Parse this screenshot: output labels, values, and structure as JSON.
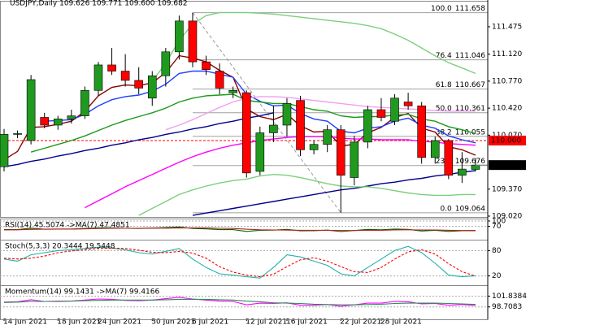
{
  "chart_data": [
    {
      "type": "candlestick",
      "title": "USDJPY,Daily  109.626 109.771 109.600 109.682",
      "categories": [
        "14 Jun 2021",
        null,
        null,
        null,
        "18 Jun 2021",
        null,
        null,
        "24 Jun 2021",
        null,
        null,
        null,
        "30 Jun 2021",
        null,
        null,
        "6 Jul 2021",
        null,
        null,
        null,
        "12 Jul 2021",
        null,
        null,
        "16 Jul 2021",
        null,
        null,
        null,
        "22 Jul 2021",
        null,
        null,
        "28 Jul 2021",
        null,
        null,
        null,
        null,
        null,
        null,
        null
      ],
      "open": [
        109.66,
        110.08,
        110.0,
        110.3,
        110.2,
        110.28,
        110.32,
        110.65,
        110.98,
        110.9,
        110.78,
        110.55,
        110.84,
        111.15,
        111.55,
        111.02,
        110.9,
        110.62,
        110.62,
        109.6,
        110.1,
        110.2,
        110.52,
        109.88,
        109.95,
        110.14,
        109.52,
        109.98,
        110.4,
        110.25,
        110.5,
        110.45,
        109.78,
        110.0,
        109.55,
        109.626
      ],
      "high": [
        110.15,
        110.13,
        110.85,
        110.36,
        110.32,
        110.4,
        110.7,
        111.02,
        111.2,
        111.12,
        110.95,
        110.9,
        111.2,
        111.62,
        111.658,
        111.1,
        111.0,
        110.7,
        110.65,
        110.18,
        110.45,
        110.55,
        110.58,
        110.0,
        110.2,
        110.2,
        110.06,
        110.45,
        110.55,
        110.6,
        110.62,
        110.5,
        110.05,
        110.02,
        109.85,
        109.771
      ],
      "low": [
        109.6,
        110.03,
        109.95,
        110.16,
        110.14,
        110.22,
        110.28,
        110.58,
        110.85,
        110.7,
        110.6,
        110.45,
        110.7,
        111.05,
        110.95,
        110.85,
        110.6,
        110.55,
        109.52,
        109.55,
        109.98,
        110.05,
        109.8,
        109.82,
        109.85,
        109.064,
        109.42,
        109.9,
        110.25,
        110.2,
        110.4,
        109.7,
        109.7,
        109.5,
        109.45,
        109.6
      ],
      "close": [
        110.08,
        110.09,
        110.79,
        110.2,
        110.28,
        110.32,
        110.65,
        110.98,
        110.9,
        110.78,
        110.68,
        110.84,
        111.15,
        111.55,
        111.02,
        110.92,
        110.68,
        110.65,
        109.58,
        110.1,
        110.2,
        110.48,
        109.88,
        109.95,
        110.14,
        109.55,
        109.98,
        110.4,
        110.3,
        110.55,
        110.45,
        109.78,
        110.0,
        109.55,
        109.63,
        109.682
      ],
      "up_color": "#1f9a1f",
      "down_color": "#ff0000",
      "series": [
        {
          "color": "#8b0000",
          "values": [
            109.75,
            109.86,
            110.17,
            110.18,
            110.21,
            110.25,
            110.38,
            110.58,
            110.69,
            110.72,
            110.71,
            110.75,
            110.88,
            111.1,
            111.07,
            111.02,
            110.91,
            110.82,
            110.41,
            110.31,
            110.27,
            110.34,
            110.19,
            110.11,
            110.12,
            109.93,
            109.95,
            110.1,
            110.17,
            110.3,
            110.35,
            110.16,
            110.11,
            109.92,
            109.88,
            109.81
          ]
        },
        {
          "color": "#1f3fff",
          "values": [
            null,
            null,
            null,
            110.25,
            110.26,
            110.27,
            110.34,
            110.45,
            110.53,
            110.57,
            110.59,
            110.64,
            110.73,
            110.87,
            110.9,
            110.9,
            110.86,
            110.82,
            110.6,
            110.51,
            110.45,
            110.46,
            110.35,
            110.28,
            110.25,
            110.12,
            110.1,
            110.16,
            110.18,
            110.25,
            110.29,
            110.2,
            110.16,
            110.06,
            110.01,
            109.97
          ]
        },
        {
          "color": "#1a9a1a",
          "values": [
            null,
            null,
            109.85,
            109.9,
            109.95,
            110.0,
            110.06,
            110.13,
            110.2,
            110.26,
            110.31,
            110.36,
            110.42,
            110.5,
            110.55,
            110.58,
            110.59,
            110.6,
            110.52,
            110.5,
            110.48,
            110.48,
            110.44,
            110.4,
            110.38,
            110.32,
            110.3,
            110.31,
            110.31,
            110.33,
            110.34,
            110.28,
            110.25,
            110.18,
            110.14,
            110.09
          ]
        },
        {
          "color": "#ff00ff",
          "values": [
            null,
            null,
            null,
            null,
            null,
            null,
            109.13,
            109.22,
            109.31,
            109.4,
            109.48,
            109.56,
            109.64,
            109.72,
            109.79,
            109.85,
            109.9,
            109.94,
            109.97,
            110.0,
            110.02,
            110.04,
            110.05,
            110.05,
            110.05,
            110.03,
            110.02,
            110.02,
            110.01,
            110.01,
            110.01,
            109.99,
            109.98,
            109.96,
            109.95,
            109.94
          ]
        },
        {
          "color": "#f0a0f0",
          "values": [
            null,
            null,
            null,
            null,
            null,
            null,
            null,
            null,
            null,
            null,
            null,
            null,
            110.14,
            110.2,
            110.27,
            110.35,
            110.43,
            110.5,
            110.55,
            110.57,
            110.57,
            110.56,
            110.54,
            110.52,
            110.5,
            110.48,
            110.46,
            110.44,
            110.43,
            110.42,
            110.41,
            110.4,
            110.39,
            110.38,
            110.38,
            110.38
          ]
        },
        {
          "color": "#00008b",
          "values": [
            109.66,
            109.69,
            109.73,
            109.76,
            109.8,
            109.83,
            109.87,
            109.9,
            109.94,
            109.97,
            110.01,
            110.04,
            110.08,
            110.11,
            110.15,
            110.18,
            110.22,
            110.25,
            110.29,
            110.32,
            110.36,
            null,
            null,
            null,
            null,
            null,
            null,
            null,
            null,
            null,
            null,
            null,
            null,
            null,
            null,
            null
          ]
        },
        {
          "color": "#00008b",
          "values": [
            null,
            null,
            null,
            null,
            null,
            null,
            null,
            null,
            null,
            null,
            null,
            null,
            null,
            null,
            109.03,
            109.06,
            109.09,
            109.12,
            109.15,
            109.18,
            109.21,
            109.24,
            109.27,
            109.3,
            109.33,
            109.36,
            109.38,
            109.41,
            109.44,
            109.46,
            109.49,
            109.51,
            109.54,
            109.56,
            109.59,
            109.61
          ]
        },
        {
          "color": "#7ccf7c",
          "values": [
            null,
            null,
            null,
            null,
            null,
            null,
            null,
            null,
            null,
            null,
            null,
            110.77,
            111.0,
            111.3,
            111.51,
            111.62,
            111.66,
            111.66,
            111.66,
            111.65,
            111.64,
            111.62,
            111.6,
            111.58,
            111.56,
            111.54,
            111.52,
            111.49,
            111.45,
            111.38,
            111.3,
            111.2,
            111.1,
            111.01,
            110.94,
            110.87
          ]
        },
        {
          "color": "#7ccf7c",
          "values": [
            null,
            null,
            null,
            null,
            null,
            null,
            null,
            null,
            null,
            null,
            109.03,
            109.12,
            109.21,
            109.3,
            109.36,
            109.41,
            109.45,
            109.48,
            109.5,
            109.54,
            109.56,
            109.55,
            109.52,
            109.48,
            109.44,
            109.41,
            109.4,
            109.4,
            109.38,
            109.35,
            109.32,
            109.3,
            109.29,
            109.29,
            109.3,
            109.3
          ]
        }
      ],
      "ylim": [
        109.02,
        111.78
      ],
      "yticks": [
        {
          "value": 109.02,
          "label": "109.020"
        },
        {
          "value": 109.37,
          "label": "109.370"
        },
        {
          "value": 110.07,
          "label": "110.070"
        },
        {
          "value": 110.42,
          "label": "110.420"
        },
        {
          "value": 110.77,
          "label": "110.770"
        },
        {
          "value": 111.12,
          "label": "111.120"
        },
        111.475
      ],
      "fib_levels": [
        {
          "label": "100.0",
          "value": 111.658
        },
        {
          "label": "76.4",
          "value": 111.046
        },
        {
          "label": "61.8",
          "value": 110.667
        },
        {
          "label": "50.0",
          "value": 110.361
        },
        {
          "label": "38.2",
          "value": 110.055
        },
        {
          "label": "23.6",
          "value": 109.676
        },
        {
          "label": "0.0",
          "value": 109.064
        }
      ],
      "hline": {
        "value": 110,
        "label": "110.000",
        "color": "#ff0000"
      }
    },
    {
      "type": "line",
      "title": "RSI(14) 45.5074 ->MA(7) 47.4851",
      "series": [
        {
          "color": "#006400",
          "values": [
            52,
            52,
            60,
            54,
            55,
            55,
            58,
            62,
            61,
            59,
            58,
            60,
            63,
            67,
            58,
            56,
            52,
            52,
            42,
            48,
            49,
            53,
            45,
            46,
            49,
            41,
            47,
            53,
            51,
            55,
            53,
            44,
            48,
            42,
            46,
            45.5074
          ]
        },
        {
          "color": "#b22222",
          "values": [
            50,
            51,
            53,
            54,
            55,
            55,
            56,
            58,
            59,
            59,
            59,
            60,
            60,
            61,
            61,
            61,
            59,
            58,
            54,
            51,
            50,
            49,
            48,
            48,
            48,
            47,
            47,
            48,
            48,
            50,
            51,
            50,
            50,
            48,
            47,
            47.4851
          ]
        }
      ],
      "ylim": [
        0,
        100
      ],
      "yticks": [
        70,
        100
      ]
    },
    {
      "type": "line",
      "title": "Stoch(5,3,3) 20.3444 19.5448",
      "series": [
        {
          "color": "#20b2aa",
          "values": [
            60,
            55,
            70,
            75,
            80,
            82,
            85,
            88,
            86,
            82,
            75,
            72,
            78,
            85,
            60,
            40,
            25,
            22,
            18,
            15,
            40,
            70,
            65,
            55,
            45,
            25,
            20,
            40,
            60,
            80,
            90,
            75,
            50,
            22,
            18,
            20.3444
          ]
        },
        {
          "color": "#ff0000",
          "dash": true,
          "values": [
            62,
            60,
            62,
            67,
            75,
            79,
            82,
            85,
            86,
            85,
            81,
            76,
            75,
            78,
            74,
            62,
            42,
            29,
            22,
            18,
            24,
            42,
            58,
            63,
            55,
            42,
            30,
            28,
            40,
            60,
            77,
            82,
            72,
            49,
            30,
            19.5448
          ]
        }
      ],
      "ylim": [
        0,
        100
      ],
      "yticks": [
        20,
        80
      ]
    },
    {
      "type": "line",
      "title": "Momentum(14) 99.1431 ->MA(7) 99.4166",
      "series": [
        {
          "color": "#ff00ff",
          "values": [
            100.1,
            100.2,
            100.8,
            100.3,
            100.4,
            100.4,
            100.7,
            101.0,
            100.9,
            100.6,
            100.5,
            100.7,
            101.1,
            101.5,
            101.0,
            100.7,
            100.4,
            100.3,
            99.3,
            99.8,
            99.7,
            99.9,
            99.2,
            99.2,
            99.4,
            98.9,
            99.3,
            99.8,
            99.8,
            100.3,
            100.2,
            99.6,
            99.7,
            99.2,
            99.4,
            99.1431
          ]
        },
        {
          "color": "#2e8b57",
          "values": [
            100.0,
            100.1,
            100.3,
            100.3,
            100.3,
            100.4,
            100.5,
            100.6,
            100.7,
            100.7,
            100.7,
            100.7,
            100.8,
            100.9,
            100.9,
            100.9,
            100.8,
            100.7,
            100.4,
            100.2,
            99.9,
            99.8,
            99.7,
            99.5,
            99.4,
            99.3,
            99.3,
            99.4,
            99.5,
            99.7,
            99.8,
            99.8,
            99.8,
            99.7,
            99.6,
            99.4166
          ]
        }
      ],
      "ylim": [
        95.35,
        104.3
      ],
      "yticks": [
        98.7083,
        101.8384
      ]
    }
  ]
}
